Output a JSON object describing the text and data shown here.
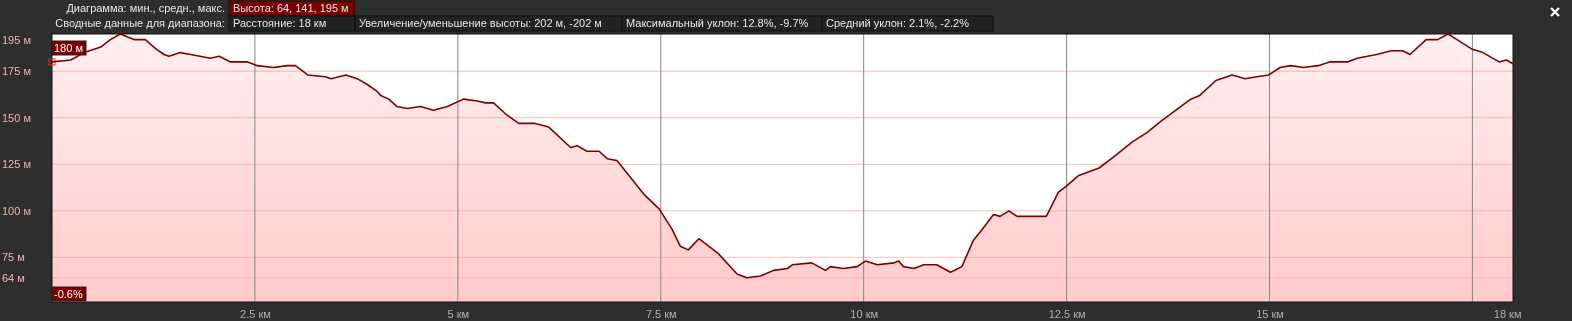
{
  "chart_data": {
    "type": "area",
    "annotations": [
      "Диаграмма: мин., средн., макс.",
      "Высота: 64, 141, 195 м",
      "Сводные данные для диапазона:",
      "Расстояние: 18 км",
      "Увеличение/уменьшение высоты: 202 м, -202 м",
      "Максимальный уклон: 12.8%, -9.7%",
      "Средний уклон: 2.1%, -2.2%",
      {
        "text": "180 м",
        "x": 0,
        "y": 180
      },
      "-0.6%"
    ],
    "x": [
      0,
      0.23,
      0.4,
      0.6,
      0.72,
      0.84,
      1.01,
      1.15,
      1.28,
      1.38,
      1.44,
      1.58,
      1.71,
      1.95,
      2.06,
      2.2,
      2.41,
      2.53,
      2.73,
      2.9,
      3.0,
      3.15,
      3.37,
      3.44,
      3.62,
      3.76,
      3.88,
      4.01,
      4.05,
      4.15,
      4.25,
      4.38,
      4.54,
      4.7,
      4.87,
      5.07,
      5.24,
      5.34,
      5.44,
      5.59,
      5.75,
      5.94,
      6.12,
      6.39,
      6.47,
      6.59,
      6.74,
      6.84,
      6.96,
      7.29,
      7.48,
      7.64,
      7.74,
      7.84,
      7.97,
      8.21,
      8.44,
      8.56,
      8.73,
      8.89,
      9.06,
      9.12,
      9.36,
      9.53,
      9.59,
      9.75,
      9.92,
      10.02,
      10.17,
      10.37,
      10.43,
      10.49,
      10.62,
      10.74,
      10.9,
      11.07,
      11.21,
      11.35,
      11.46,
      11.6,
      11.68,
      11.79,
      11.89,
      12.25,
      12.4,
      12.49,
      12.65,
      12.9,
      13.08,
      13.31,
      13.49,
      13.66,
      14.03,
      14.14,
      14.34,
      14.54,
      14.7,
      14.84,
      14.99,
      15.13,
      15.26,
      15.42,
      15.6,
      15.74,
      15.96,
      16.08,
      16.32,
      16.5,
      16.64,
      16.73,
      16.93,
      17.07,
      17.2,
      17.31,
      17.49,
      17.63,
      17.83,
      17.92,
      18
    ],
    "series": [
      {
        "color": "#800000",
        "values": [
          180,
          181,
          185,
          188,
          192,
          195,
          192,
          192,
          187,
          184,
          183,
          185,
          184,
          182,
          183,
          180,
          180,
          178,
          177,
          178,
          178,
          173,
          172,
          171,
          173,
          171,
          168,
          164,
          162,
          160,
          156,
          155,
          156,
          154,
          156,
          160,
          159,
          158,
          158,
          152,
          147,
          147,
          145,
          134,
          135,
          132,
          132,
          128,
          127,
          109,
          101,
          90,
          81,
          79,
          85,
          77,
          66,
          64,
          65,
          68,
          69,
          71,
          72,
          68,
          70,
          69,
          70,
          73,
          71,
          72,
          73,
          70,
          69,
          71,
          71,
          67,
          70,
          84,
          90,
          98,
          97,
          100,
          97,
          97,
          110,
          113,
          119,
          123,
          129,
          137,
          142,
          148,
          160,
          162,
          170,
          173,
          171,
          172,
          173,
          177,
          178,
          177,
          178,
          180,
          180,
          182,
          184,
          186,
          186,
          184,
          192,
          192,
          195,
          192,
          187,
          185,
          180,
          181,
          179
        ]
      }
    ],
    "xlim": [
      0,
      18
    ],
    "xticks": [
      {
        "value": 2.5,
        "label": "2.5 км"
      },
      {
        "value": 5,
        "label": "5 км"
      },
      {
        "value": 7.5,
        "label": "7.5 км"
      },
      {
        "value": 10,
        "label": "10 км"
      },
      {
        "value": 12.5,
        "label": "12.5 км"
      },
      {
        "value": 15,
        "label": "15 км"
      },
      {
        "value": 17.5,
        "label": null
      },
      {
        "value": 18,
        "label": "18 км"
      }
    ],
    "ylim": [
      51,
      195
    ],
    "yticks": [
      {
        "value": 64,
        "label": "64 м"
      },
      {
        "value": 75,
        "label": "75 м"
      },
      {
        "value": 100,
        "label": "100 м"
      },
      {
        "value": 125,
        "label": "125 м"
      },
      {
        "value": 150,
        "label": "150 м"
      },
      {
        "value": 175,
        "label": "175 м"
      },
      {
        "value": 195,
        "label": "195 м"
      }
    ],
    "grid": true
  }
}
